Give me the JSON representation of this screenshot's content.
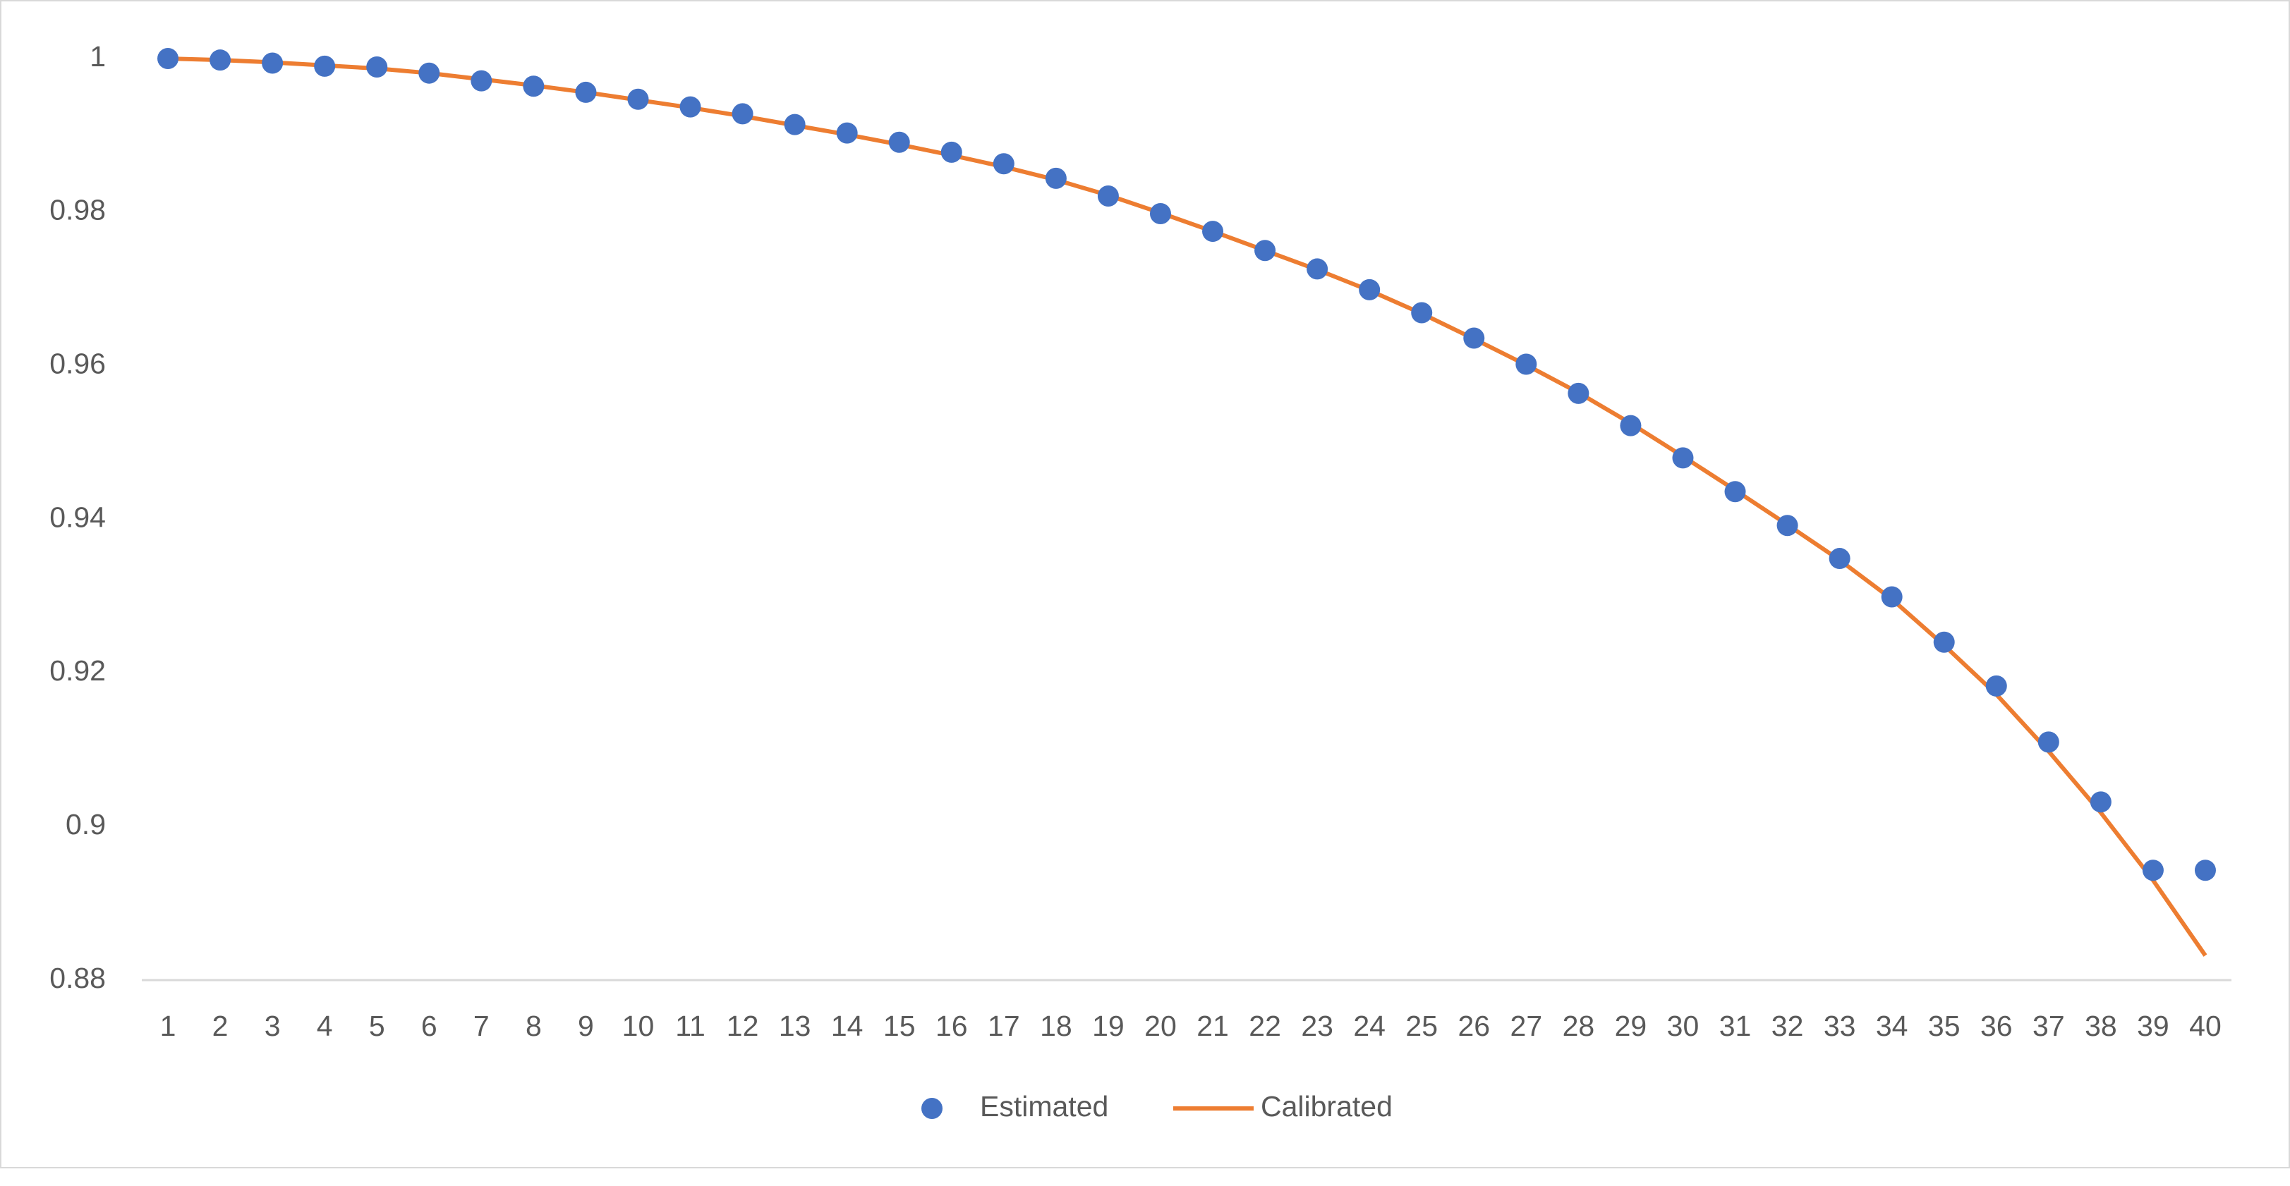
{
  "chart_data": {
    "type": "combo",
    "categories": [
      1,
      2,
      3,
      4,
      5,
      6,
      7,
      8,
      9,
      10,
      11,
      12,
      13,
      14,
      15,
      16,
      17,
      18,
      19,
      20,
      21,
      22,
      23,
      24,
      25,
      26,
      27,
      28,
      29,
      30,
      31,
      32,
      33,
      34,
      35,
      36,
      37,
      38,
      39,
      40
    ],
    "series": [
      {
        "name": "Estimated",
        "type": "scatter",
        "color": "#4472c4",
        "values": [
          1.0,
          0.9998,
          0.9994,
          0.999,
          0.9989,
          0.9981,
          0.9971,
          0.9964,
          0.9956,
          0.9947,
          0.9937,
          0.9928,
          0.9914,
          0.9903,
          0.9891,
          0.9878,
          0.9863,
          0.9844,
          0.9821,
          0.9798,
          0.9775,
          0.975,
          0.9726,
          0.9699,
          0.9669,
          0.9636,
          0.9602,
          0.9564,
          0.9522,
          0.948,
          0.9436,
          0.9392,
          0.9349,
          0.9299,
          0.924,
          0.9183,
          0.911,
          0.9032,
          0.8943,
          0.8943
        ]
      },
      {
        "name": "Calibrated",
        "type": "line",
        "color": "#ed7d31",
        "values": [
          1.0,
          0.9998,
          0.9995,
          0.9991,
          0.9987,
          0.9981,
          0.9973,
          0.9965,
          0.9956,
          0.9946,
          0.9936,
          0.9925,
          0.9913,
          0.9901,
          0.9888,
          0.9874,
          0.9859,
          0.9842,
          0.9822,
          0.9799,
          0.9775,
          0.975,
          0.9725,
          0.9698,
          0.9668,
          0.9635,
          0.9601,
          0.9565,
          0.9525,
          0.9482,
          0.9438,
          0.9393,
          0.9347,
          0.9296,
          0.9236,
          0.9172,
          0.9098,
          0.9018,
          0.893,
          0.8832
        ]
      }
    ],
    "ylim": [
      0.88,
      1.0
    ],
    "yticks": [
      0.88,
      0.9,
      0.92,
      0.94,
      0.96,
      0.98,
      1
    ],
    "grid": false,
    "legend": "bottom"
  }
}
